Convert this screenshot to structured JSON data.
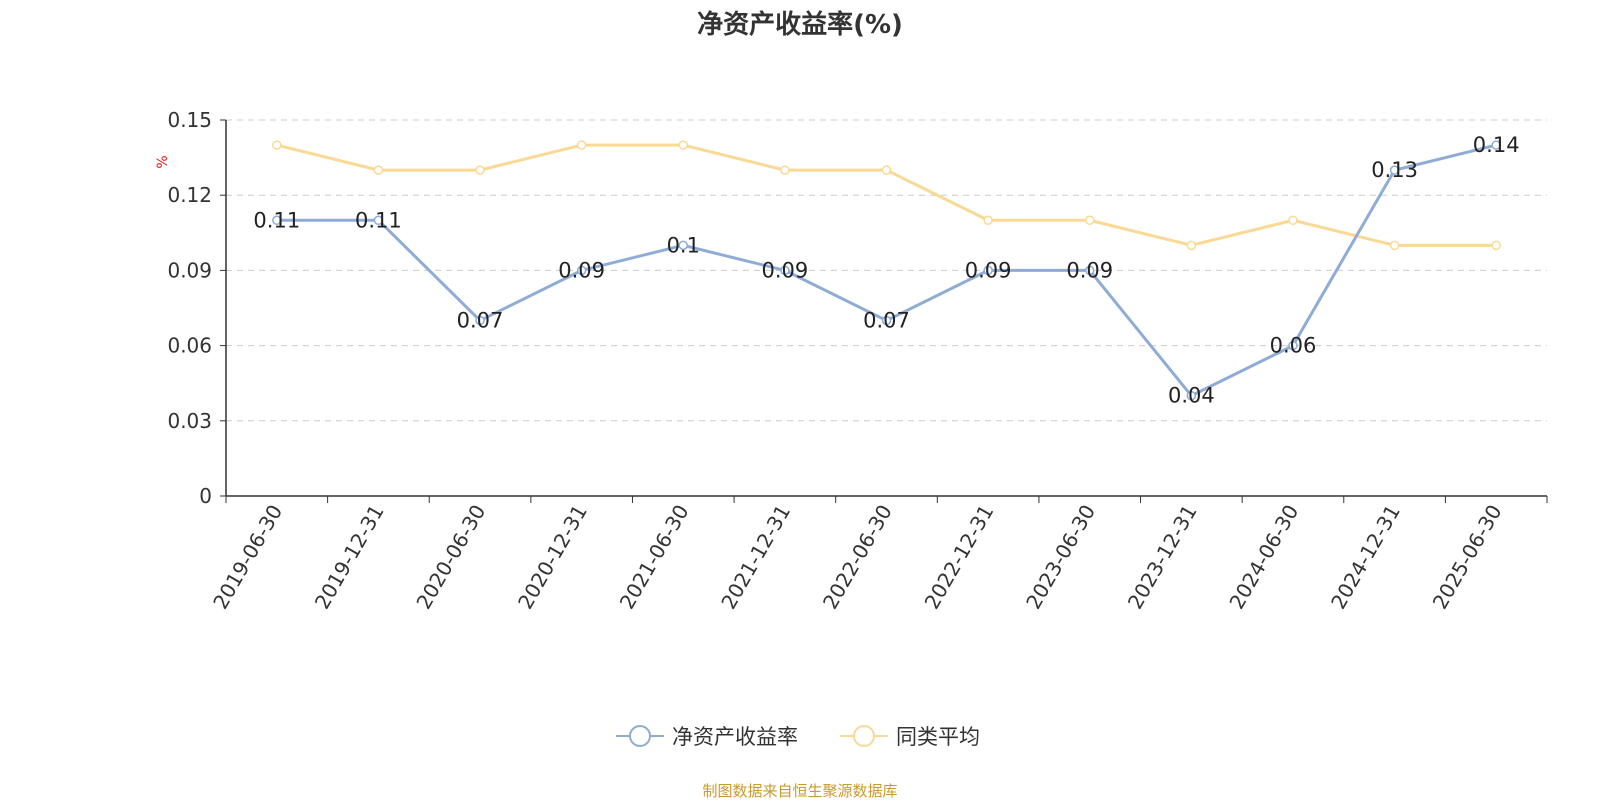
{
  "chart_data": {
    "type": "line",
    "title": "净资产收益率(%)",
    "ylabel": "%",
    "ylim": [
      0,
      0.15
    ],
    "yticks": [
      "0",
      "0.03",
      "0.06",
      "0.09",
      "0.12",
      "0.15"
    ],
    "grid": true,
    "legend_position": "bottom",
    "categories": [
      "2019-06-30",
      "2019-12-31",
      "2020-06-30",
      "2020-12-31",
      "2021-06-30",
      "2021-12-31",
      "2022-06-30",
      "2022-12-31",
      "2023-06-30",
      "2023-12-31",
      "2024-06-30",
      "2024-12-31",
      "2025-06-30"
    ],
    "series": [
      {
        "name": "净资产收益率",
        "color": "#8eacd6",
        "values": [
          0.11,
          0.11,
          0.07,
          0.09,
          0.1,
          0.09,
          0.07,
          0.09,
          0.09,
          0.04,
          0.06,
          0.13,
          0.14
        ],
        "labels": [
          "0.11",
          "0.11",
          "0.07",
          "0.09",
          "0.1",
          "0.09",
          "0.07",
          "0.09",
          "0.09",
          "0.04",
          "0.06",
          "0.13",
          "0.14"
        ]
      },
      {
        "name": "同类平均",
        "color": "#fad994",
        "values": [
          0.14,
          0.13,
          0.13,
          0.14,
          0.14,
          0.13,
          0.13,
          0.11,
          0.11,
          0.1,
          0.11,
          0.1,
          0.1
        ]
      }
    ],
    "source": "制图数据来自恒生聚源数据库"
  }
}
